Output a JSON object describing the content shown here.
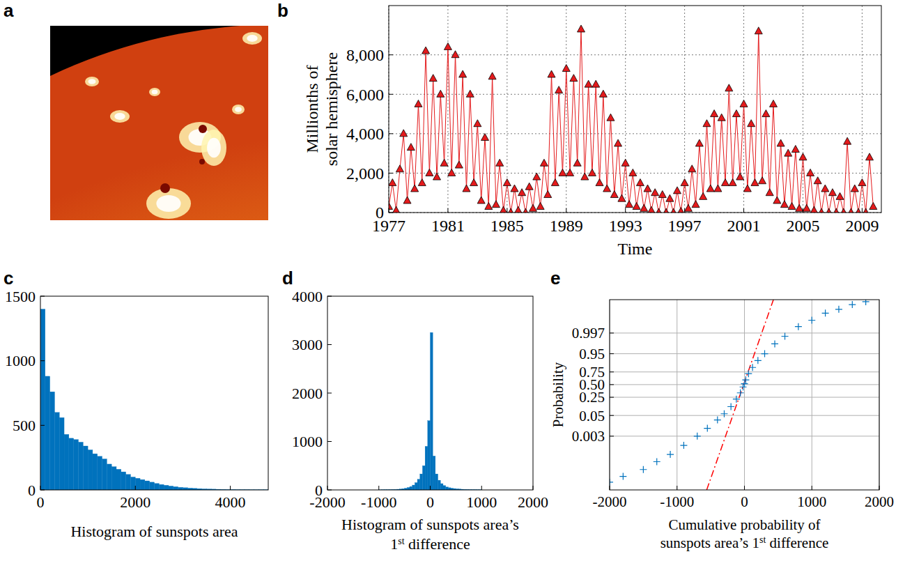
{
  "chart_data": [
    {
      "type": "image",
      "panel_label": "a"
    },
    {
      "type": "line",
      "panel_label": "b",
      "x_label": "Time",
      "y_label": "Millionths of solar hemisphere",
      "color": "#e41a1c",
      "marker": "triangle",
      "grid": true,
      "xlim": [
        1977,
        2010.3
      ],
      "ylim": [
        0,
        10500
      ],
      "xticks": [
        1977,
        1981,
        1985,
        1989,
        1993,
        1997,
        2001,
        2005,
        2009
      ],
      "yticks": [
        0,
        {
          "value": 2000,
          "label": "2,000"
        },
        {
          "value": 4000,
          "label": "4,000"
        },
        {
          "value": 6000,
          "label": "6,000"
        },
        {
          "value": 8000,
          "label": "8,000"
        }
      ],
      "x": [
        1977,
        1977.25,
        1977.5,
        1977.75,
        1978,
        1978.25,
        1978.5,
        1978.75,
        1979,
        1979.25,
        1979.5,
        1979.75,
        1980,
        1980.25,
        1980.5,
        1980.75,
        1981,
        1981.25,
        1981.5,
        1981.75,
        1982,
        1982.25,
        1982.5,
        1982.75,
        1983,
        1983.25,
        1983.5,
        1983.75,
        1984,
        1984.25,
        1984.5,
        1984.75,
        1985,
        1985.25,
        1985.5,
        1985.75,
        1986,
        1986.25,
        1986.5,
        1986.75,
        1987,
        1987.25,
        1987.5,
        1987.75,
        1988,
        1988.25,
        1988.5,
        1988.75,
        1989,
        1989.25,
        1989.5,
        1989.75,
        1990,
        1990.25,
        1990.5,
        1990.75,
        1991,
        1991.25,
        1991.5,
        1991.75,
        1992,
        1992.25,
        1992.5,
        1992.75,
        1993,
        1993.25,
        1993.5,
        1993.75,
        1994,
        1994.25,
        1994.5,
        1994.75,
        1995,
        1995.25,
        1995.5,
        1995.75,
        1996,
        1996.25,
        1996.5,
        1996.75,
        1997,
        1997.25,
        1997.5,
        1997.75,
        1998,
        1998.25,
        1998.5,
        1998.75,
        1999,
        1999.25,
        1999.5,
        1999.75,
        2000,
        2000.25,
        2000.5,
        2000.75,
        2001,
        2001.25,
        2001.5,
        2001.75,
        2002,
        2002.25,
        2002.5,
        2002.75,
        2003,
        2003.25,
        2003.5,
        2003.75,
        2004,
        2004.25,
        2004.5,
        2004.75,
        2005,
        2005.25,
        2005.5,
        2005.75,
        2006,
        2006.25,
        2006.5,
        2006.75,
        2007,
        2007.25,
        2007.5,
        2007.75,
        2008,
        2008.25,
        2008.5,
        2008.75,
        2009,
        2009.25,
        2009.5,
        2009.75
      ],
      "values": [
        300,
        1500,
        100,
        2200,
        4000,
        600,
        3300,
        1200,
        5500,
        1500,
        8200,
        2000,
        6800,
        1800,
        6000,
        2500,
        8400,
        2000,
        8000,
        2400,
        7000,
        1200,
        6000,
        1500,
        4500,
        600,
        3800,
        300,
        6900,
        400,
        2500,
        100,
        1500,
        0,
        1200,
        100,
        1000,
        0,
        1300,
        200,
        1800,
        300,
        2500,
        900,
        7000,
        1500,
        6200,
        2000,
        7300,
        2000,
        6800,
        2500,
        9300,
        1800,
        6500,
        2000,
        6500,
        1500,
        6000,
        1200,
        4800,
        900,
        3500,
        700,
        2500,
        400,
        2000,
        300,
        1500,
        200,
        1200,
        100,
        1000,
        0,
        900,
        0,
        700,
        0,
        1100,
        50,
        1500,
        200,
        2200,
        400,
        3500,
        800,
        4500,
        1200,
        5000,
        1200,
        4800,
        1500,
        6300,
        1500,
        5000,
        1800,
        5500,
        1200,
        4500,
        1500,
        9200,
        1600,
        5000,
        1000,
        5500,
        600,
        3500,
        400,
        3000,
        300,
        3200,
        200,
        2800,
        200,
        2000,
        100,
        1600,
        0,
        1200,
        0,
        1000,
        0,
        800,
        0,
        3600,
        0,
        1200,
        0,
        1500,
        0,
        2800,
        300
      ]
    },
    {
      "type": "histogram",
      "panel_label": "c",
      "x_label": "Histogram of sunspots area",
      "color": "#0072bd",
      "grid": false,
      "xlim": [
        0,
        4800
      ],
      "ylim": [
        0,
        1500
      ],
      "xticks": [
        0,
        2000,
        4000
      ],
      "yticks": [
        0,
        500,
        1000,
        1500
      ],
      "bins": [
        0,
        100,
        200,
        300,
        400,
        500,
        600,
        700,
        800,
        900,
        1000,
        1100,
        1200,
        1300,
        1400,
        1500,
        1600,
        1700,
        1800,
        1900,
        2000,
        2100,
        2200,
        2300,
        2400,
        2500,
        2600,
        2700,
        2800,
        2900,
        3000,
        3100,
        3200,
        3300,
        3400,
        3500,
        3600,
        3700,
        3800,
        3900,
        4000,
        4100,
        4200,
        4300,
        4400,
        4500,
        4600,
        4700,
        4800
      ],
      "values": [
        1400,
        880,
        760,
        600,
        560,
        430,
        400,
        390,
        370,
        340,
        310,
        280,
        260,
        240,
        200,
        180,
        160,
        140,
        120,
        100,
        90,
        80,
        70,
        60,
        50,
        42,
        36,
        30,
        25,
        20,
        17,
        14,
        12,
        10,
        8,
        7,
        6,
        5,
        4,
        3,
        3,
        2,
        2,
        2,
        1,
        1,
        1,
        1
      ]
    },
    {
      "type": "histogram",
      "panel_label": "d",
      "x_label": "Histogram of sunspots area’s 1st difference",
      "color": "#0072bd",
      "grid": false,
      "xlim": [
        -2000,
        2000
      ],
      "ylim": [
        0,
        4000
      ],
      "xticks": [
        -2000,
        -1000,
        0,
        1000,
        2000
      ],
      "yticks": [
        0,
        1000,
        2000,
        3000,
        4000
      ],
      "bins": [
        -1000,
        -950,
        -900,
        -850,
        -800,
        -750,
        -700,
        -650,
        -600,
        -550,
        -500,
        -450,
        -400,
        -350,
        -300,
        -250,
        -200,
        -150,
        -100,
        -50,
        0,
        50,
        100,
        150,
        200,
        250,
        300,
        350,
        400,
        450,
        500,
        550,
        600,
        650,
        700,
        750,
        800,
        850,
        900,
        950,
        1000
      ],
      "values": [
        2,
        3,
        4,
        5,
        6,
        8,
        10,
        14,
        18,
        25,
        35,
        50,
        70,
        100,
        150,
        220,
        330,
        500,
        900,
        1430,
        3250,
        700,
        330,
        200,
        130,
        90,
        60,
        45,
        35,
        28,
        22,
        18,
        14,
        11,
        9,
        7,
        6,
        5,
        4,
        3
      ]
    },
    {
      "type": "probability_plot",
      "panel_label": "e",
      "x_label": "Cumulative probability of sunspots area’s 1st difference",
      "y_label": "Probability",
      "color": "#0072bd",
      "marker": "plus",
      "grid": true,
      "xlim": [
        -2000,
        2000
      ],
      "ylim": [
        1e-08,
        0.999997
      ],
      "xticks": [
        -2000,
        -1000,
        0,
        1000,
        2000
      ],
      "yticks": [
        0.003,
        0.05,
        0.25,
        {
          "value": 0.5,
          "label": "0.50"
        },
        0.75,
        0.95,
        0.997
      ],
      "x": [
        -2000,
        -1800,
        -1500,
        -1300,
        -1100,
        -900,
        -700,
        -550,
        -400,
        -300,
        -200,
        -120,
        -60,
        -20,
        0,
        20,
        60,
        120,
        200,
        300,
        450,
        600,
        800,
        1000,
        1200,
        1400,
        1600,
        1800
      ],
      "values": [
        1e-07,
        5e-07,
        3e-06,
        2e-05,
        0.0001,
        0.0006,
        0.003,
        0.01,
        0.03,
        0.06,
        0.12,
        0.22,
        0.33,
        0.45,
        0.52,
        0.6,
        0.72,
        0.82,
        0.9,
        0.95,
        0.985,
        0.995,
        0.999,
        0.9997,
        0.99993,
        0.99997,
        0.99999,
        0.999995
      ],
      "reference_line": {
        "x": [
          -560,
          430
        ],
        "y": [
          1e-08,
          0.999997
        ],
        "color": "#ff0000",
        "line_style": "dashdot"
      }
    }
  ]
}
